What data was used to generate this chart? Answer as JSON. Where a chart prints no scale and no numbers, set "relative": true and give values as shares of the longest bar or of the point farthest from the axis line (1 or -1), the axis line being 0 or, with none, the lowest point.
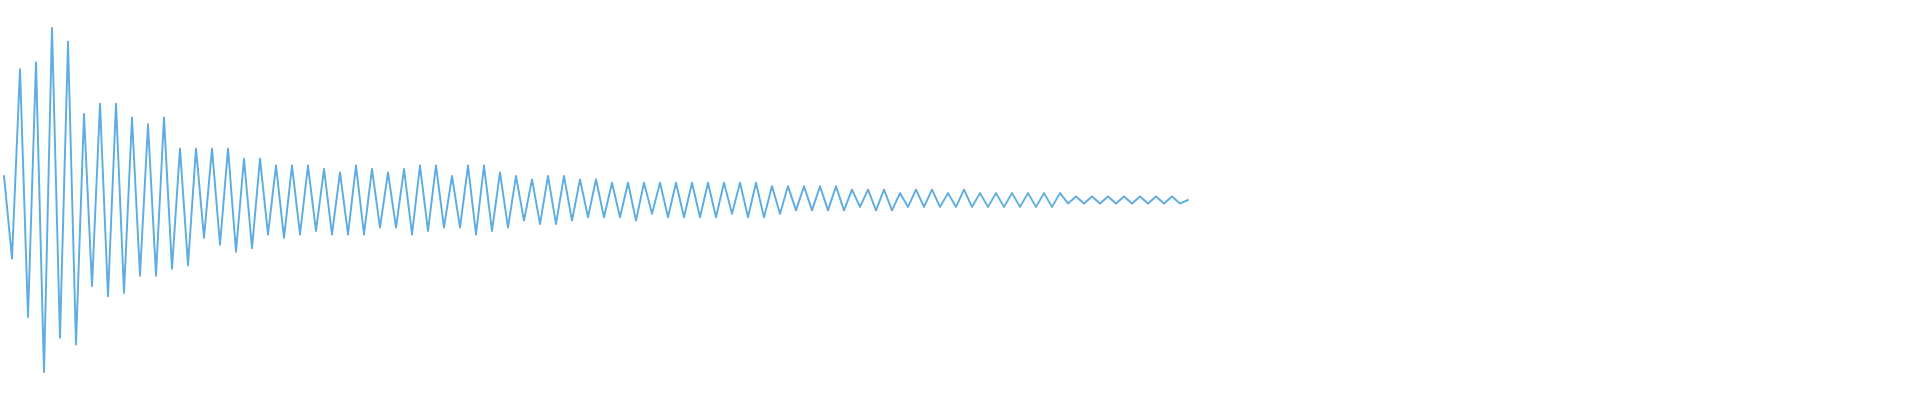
{
  "chart_data": {
    "type": "line",
    "relative": true,
    "categories": [
      null,
      null,
      null,
      null,
      null,
      null,
      null,
      null,
      null,
      null,
      null,
      null,
      null,
      null,
      null,
      null,
      null,
      null,
      null,
      null,
      null,
      null,
      null,
      null,
      null,
      null,
      null,
      null,
      null,
      null,
      null,
      null,
      null,
      null,
      null,
      null,
      null,
      null,
      null,
      null,
      null,
      null,
      null,
      null,
      null,
      null,
      null,
      null,
      null,
      null,
      null,
      null,
      null,
      null,
      null,
      null,
      null,
      null,
      null,
      null,
      null,
      null,
      null,
      null,
      null,
      null,
      null,
      null,
      null,
      null,
      null,
      null,
      null,
      null,
      null,
      null,
      null,
      null,
      null,
      null,
      null,
      null,
      null,
      null,
      null,
      null,
      null,
      null,
      null,
      null,
      null,
      null,
      null,
      null,
      null,
      null,
      null,
      null,
      null,
      null,
      null,
      null,
      null,
      null,
      null,
      null,
      null,
      null,
      null,
      null,
      null,
      null,
      null,
      null,
      null,
      null,
      null,
      null,
      null,
      null,
      null,
      null,
      null,
      null,
      null,
      null,
      null,
      null,
      null,
      null,
      null,
      null,
      null,
      null,
      null,
      null,
      null,
      null,
      null,
      null,
      null,
      null,
      null,
      null,
      null,
      null,
      null,
      null,
      null,
      null,
      null,
      null,
      null,
      null,
      null,
      null,
      null,
      null,
      null,
      null,
      null,
      null,
      null,
      null,
      null,
      null,
      null,
      null,
      null,
      null,
      null,
      null,
      null,
      null,
      null,
      null,
      null,
      null,
      null,
      null,
      null,
      null,
      null,
      null,
      null,
      null,
      null,
      null,
      null,
      null,
      null,
      null,
      null,
      null,
      null,
      null,
      null,
      null,
      null,
      null,
      null,
      null,
      null,
      null,
      null,
      null,
      null,
      null,
      null,
      null,
      null,
      null,
      null,
      null,
      null,
      null,
      null,
      null,
      null,
      null,
      null,
      null,
      null,
      null,
      null,
      null,
      null,
      null,
      null,
      null,
      null,
      null,
      null,
      null,
      null,
      null,
      null,
      null,
      null,
      null
    ],
    "series": [
      {
        "color": "#5dade2",
        "values": [
          0.57,
          0.33,
          0.88,
          0.16,
          0.9,
          0,
          1,
          0.1,
          0.96,
          0.08,
          0.75,
          0.25,
          0.78,
          0.22,
          0.78,
          0.23,
          0.74,
          0.28,
          0.72,
          0.28,
          0.74,
          0.3,
          0.65,
          0.31,
          0.65,
          0.39,
          0.65,
          0.37,
          0.65,
          0.35,
          0.62,
          0.36,
          0.62,
          0.4,
          0.6,
          0.39,
          0.6,
          0.4,
          0.6,
          0.41,
          0.59,
          0.4,
          0.58,
          0.4,
          0.6,
          0.4,
          0.59,
          0.42,
          0.58,
          0.42,
          0.59,
          0.4,
          0.6,
          0.41,
          0.6,
          0.42,
          0.57,
          0.42,
          0.6,
          0.4,
          0.6,
          0.41,
          0.58,
          0.42,
          0.57,
          0.44,
          0.56,
          0.43,
          0.57,
          0.43,
          0.57,
          0.44,
          0.56,
          0.45,
          0.56,
          0.45,
          0.55,
          0.45,
          0.55,
          0.44,
          0.55,
          0.46,
          0.55,
          0.45,
          0.55,
          0.45,
          0.55,
          0.45,
          0.55,
          0.45,
          0.55,
          0.46,
          0.55,
          0.45,
          0.55,
          0.45,
          0.54,
          0.46,
          0.54,
          0.47,
          0.54,
          0.47,
          0.54,
          0.47,
          0.54,
          0.47,
          0.53,
          0.48,
          0.53,
          0.47,
          0.53,
          0.47,
          0.52,
          0.48,
          0.53,
          0.48,
          0.53,
          0.48,
          0.52,
          0.48,
          0.53,
          0.48,
          0.52,
          0.48,
          0.52,
          0.48,
          0.52,
          0.48,
          0.52,
          0.48,
          0.52,
          0.48,
          0.52,
          0.49,
          0.51,
          0.49,
          0.51,
          0.49,
          0.51,
          0.49,
          0.51,
          0.49,
          0.51,
          0.49,
          0.51,
          0.49,
          0.51,
          0.49,
          0.5,
          null,
          null,
          null,
          null,
          null,
          null,
          null,
          null,
          null,
          null,
          null,
          null,
          null,
          null,
          null,
          null,
          null,
          null,
          null,
          null,
          null,
          null,
          null,
          null,
          null,
          null,
          null,
          null,
          null,
          null,
          null,
          null,
          null,
          null,
          null,
          null,
          null,
          null,
          null,
          null,
          null,
          null,
          null,
          null,
          null,
          null,
          null,
          null,
          null,
          null,
          null,
          null,
          null,
          null,
          null,
          null,
          null,
          null,
          null,
          null,
          null,
          null,
          null,
          null,
          null,
          null,
          null,
          null,
          null,
          null,
          null,
          null,
          null,
          null,
          null,
          null,
          null,
          null,
          null,
          null,
          null,
          null,
          null,
          null,
          null,
          null,
          null,
          null,
          null,
          null,
          null
        ]
      }
    ]
  }
}
